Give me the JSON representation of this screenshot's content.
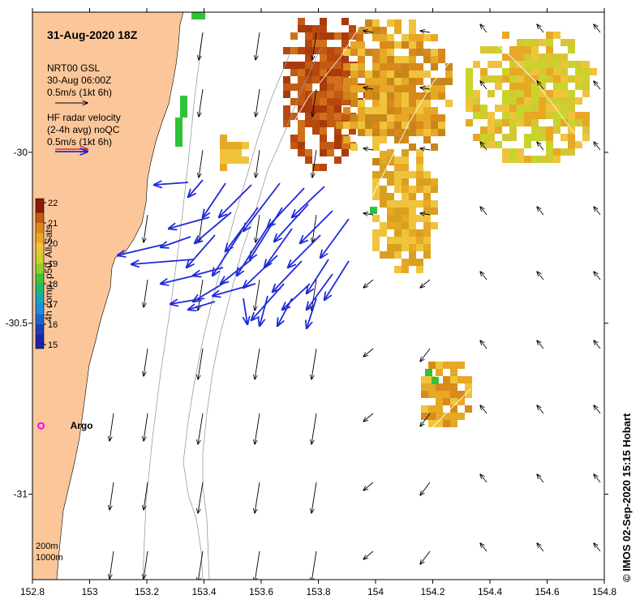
{
  "map": {
    "title": "31-Aug-2020 18Z",
    "credit": "© IMOS 02-Sep-2020 15:15 Hobart",
    "x_ticks": [
      "152.8",
      "153",
      "153.2",
      "153.4",
      "153.6",
      "153.8",
      "154",
      "154.2",
      "154.4",
      "154.6",
      "154.8"
    ],
    "y_ticks": [
      "-30",
      "-30.5",
      "-31"
    ],
    "x_range": [
      152.8,
      154.8
    ],
    "y_range": [
      -31.25,
      -29.59
    ],
    "colors": {
      "land": "#fbc79a",
      "radar_arrow": "#1f2ad8",
      "model_arrow": "#000000",
      "contour": "#9a9a9a"
    }
  },
  "legend": {
    "model_line1": "NRT00 GSL",
    "model_line2": "30-Aug 06:00Z",
    "model_scale": "0.5m/s (1kt 6h)",
    "radar_line1": "HF radar velocity",
    "radar_line2": "(2-4h avg) noQC",
    "radar_scale": "0.5m/s (1kt 6h)"
  },
  "colorbar": {
    "label": "4h comp, p50, All Sats",
    "ticks": [
      "22",
      "21",
      "20",
      "19",
      "18",
      "17",
      "16",
      "15"
    ],
    "range": [
      14.8,
      22.2
    ]
  },
  "depth_labels": [
    "200m",
    "1000m"
  ],
  "argo": {
    "label": "Argo",
    "lon": 152.83,
    "lat": -30.8
  }
}
